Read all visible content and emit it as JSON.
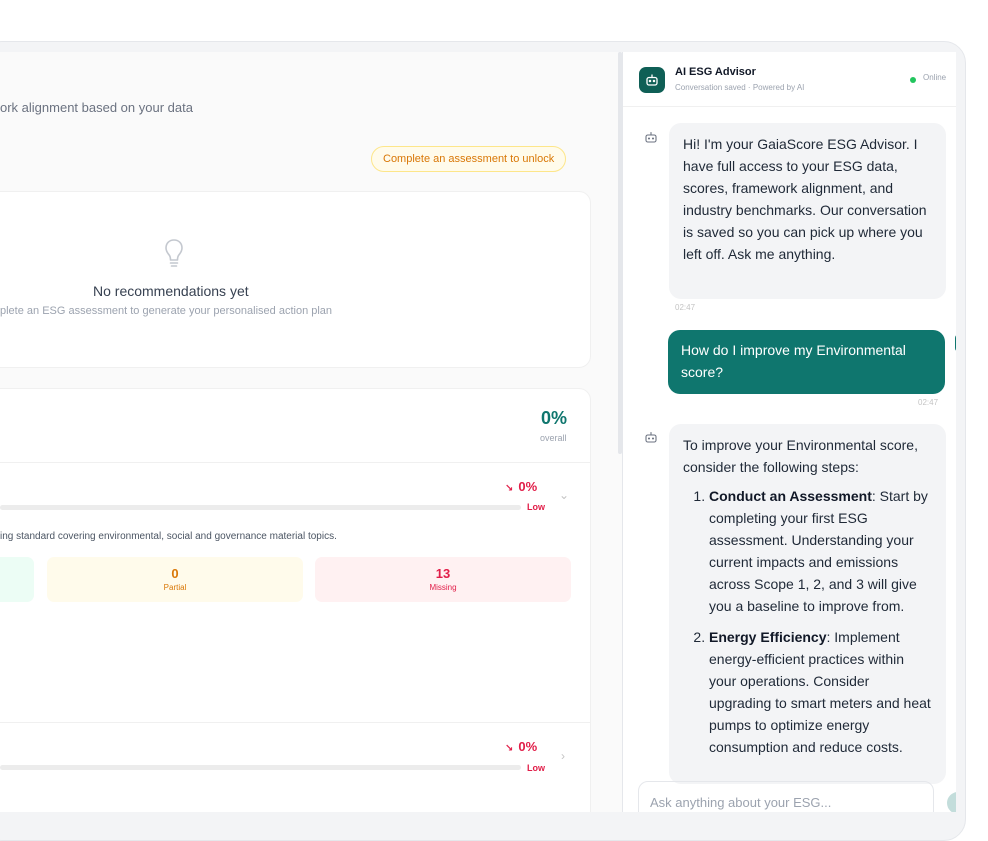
{
  "header": {
    "subtitle": "ork alignment based on your data",
    "unlock_badge": "Complete an assessment to unlock"
  },
  "recommendations": {
    "empty_icon": "lightbulb-icon",
    "empty_title": "No recommendations yet",
    "empty_desc": "plete an ESG assessment to generate your personalised action plan"
  },
  "frameworks": {
    "overall_pct": "0%",
    "overall_label": "overall",
    "items": [
      {
        "pct": "0%",
        "level": "Low",
        "description": "ing standard covering environmental, social and governance material topics.",
        "stats": {
          "partial_count": "0",
          "partial_label": "Partial",
          "missing_count": "13",
          "missing_label": "Missing"
        }
      },
      {
        "pct": "0%",
        "level": "Low"
      }
    ]
  },
  "chat": {
    "title": "AI ESG Advisor",
    "subtitle": "Conversation saved · Powered by AI",
    "status": "Online",
    "messages": {
      "bot1": "Hi! I'm your GaiaScore ESG Advisor. I have full access to your ESG data, scores, framework alignment, and industry benchmarks. Our conversation is saved so you can pick up where you left off. Ask me anything.",
      "bot1_time": "02:47",
      "user1": "How do I improve my Environmental score?",
      "user1_time": "02:47",
      "bot2_intro": "To improve your Environmental score, consider the following steps:",
      "bot2_steps": [
        {
          "title": "Conduct an Assessment",
          "text": ": Start by completing your first ESG assessment. Understanding your current impacts and emissions across Scope 1, 2, and 3 will give you a baseline to improve from."
        },
        {
          "title": "Energy Efficiency",
          "text": ": Implement energy-efficient practices within your operations. Consider upgrading to smart meters and heat pumps to optimize energy consumption and reduce costs."
        }
      ]
    },
    "input_placeholder": "Ask anything about your ESG..."
  },
  "colors": {
    "accent": "#0f766e",
    "danger": "#e11d48",
    "warning": "#d97706",
    "online": "#22c55e"
  }
}
